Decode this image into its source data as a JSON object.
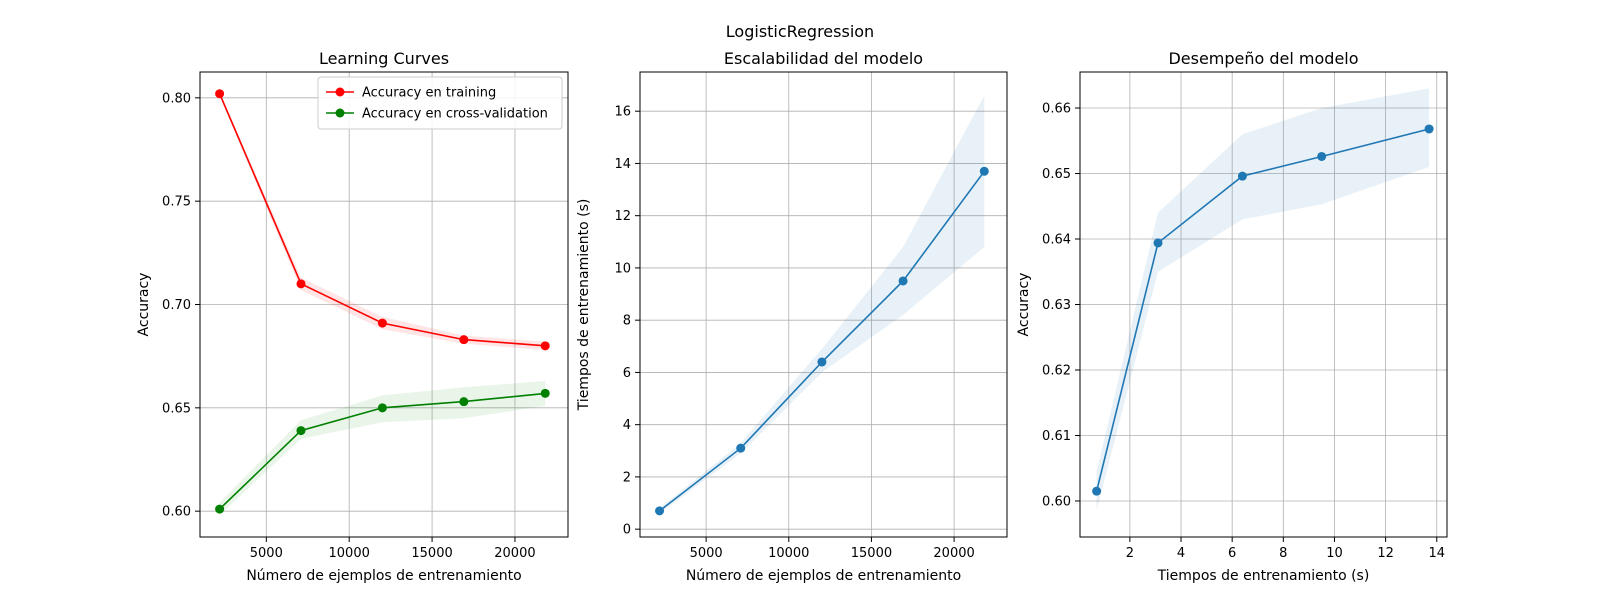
{
  "suptitle": "LogisticRegression",
  "chart_data": [
    {
      "type": "line",
      "title": "Learning Curves",
      "xlabel": "Número de ejemplos de entrenamiento",
      "ylabel": "Accuracy",
      "xlim": [
        1000,
        23200
      ],
      "ylim": [
        0.5875,
        0.8125
      ],
      "xticks": [
        5000,
        10000,
        15000,
        20000
      ],
      "yticks": [
        0.6,
        0.65,
        0.7,
        0.75,
        0.8
      ],
      "ytick_decimals": 2,
      "grid": true,
      "legend_position": "top-right",
      "series": [
        {
          "name": "Accuracy en training",
          "color": "#ff0000",
          "band_color": "#ff0000",
          "x": [
            2182,
            7093,
            12004,
            16915,
            21826
          ],
          "y": [
            0.802,
            0.71,
            0.691,
            0.683,
            0.68
          ],
          "y_lower": [
            0.801,
            0.707,
            0.688,
            0.681,
            0.678
          ],
          "y_upper": [
            0.803,
            0.713,
            0.694,
            0.685,
            0.682
          ]
        },
        {
          "name": "Accuracy en cross-validation",
          "color": "#008000",
          "band_color": "#2ca02c",
          "x": [
            2182,
            7093,
            12004,
            16915,
            21826
          ],
          "y": [
            0.601,
            0.639,
            0.65,
            0.653,
            0.657
          ],
          "y_lower": [
            0.598,
            0.635,
            0.643,
            0.645,
            0.651
          ],
          "y_upper": [
            0.604,
            0.644,
            0.656,
            0.66,
            0.663
          ]
        }
      ]
    },
    {
      "type": "line",
      "title": "Escalabilidad del modelo",
      "xlabel": "Número de ejemplos de entrenamiento",
      "ylabel": "Tiempos de entrenamiento (s)",
      "xlim": [
        1000,
        23200
      ],
      "ylim": [
        -0.3,
        17.5
      ],
      "xticks": [
        5000,
        10000,
        15000,
        20000
      ],
      "yticks": [
        0,
        2,
        4,
        6,
        8,
        10,
        12,
        14,
        16
      ],
      "ytick_decimals": 0,
      "grid": true,
      "series": [
        {
          "color": "#1f77b4",
          "band_color": "#1f77b4",
          "x": [
            2182,
            7093,
            12004,
            16915,
            21826
          ],
          "y": [
            0.7,
            3.1,
            6.4,
            9.5,
            13.7
          ],
          "y_lower": [
            0.6,
            2.9,
            6.0,
            8.2,
            10.8
          ],
          "y_upper": [
            0.8,
            3.3,
            6.9,
            10.8,
            16.6
          ]
        }
      ]
    },
    {
      "type": "line",
      "title": "Desempeño del modelo",
      "xlabel": "Tiempos de entrenamiento (s)",
      "ylabel": "Accuracy",
      "xlim": [
        0.05,
        14.4
      ],
      "ylim": [
        0.5945,
        0.6655
      ],
      "xticks": [
        2,
        4,
        6,
        8,
        10,
        12,
        14
      ],
      "yticks": [
        0.6,
        0.61,
        0.62,
        0.63,
        0.64,
        0.65,
        0.66
      ],
      "ytick_decimals": 2,
      "grid": true,
      "series": [
        {
          "color": "#1f77b4",
          "band_color": "#1f77b4",
          "x": [
            0.7,
            3.1,
            6.4,
            9.5,
            13.7
          ],
          "y": [
            0.6015,
            0.6394,
            0.6496,
            0.6526,
            0.6568
          ],
          "y_lower": [
            0.5985,
            0.635,
            0.643,
            0.6453,
            0.651
          ],
          "y_upper": [
            0.6045,
            0.644,
            0.656,
            0.66,
            0.663
          ]
        }
      ]
    }
  ]
}
